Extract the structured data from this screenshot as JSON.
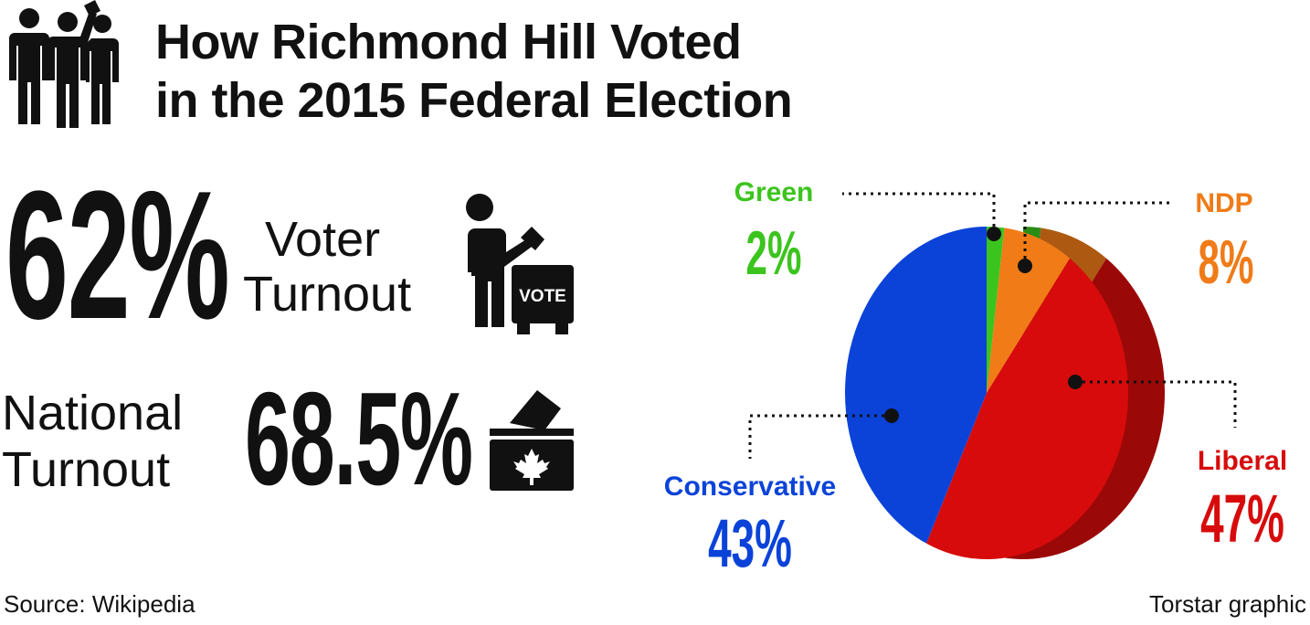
{
  "title": {
    "line1": "How Richmond Hill Voted",
    "line2": "in the 2015 Federal Election"
  },
  "local_turnout": {
    "value": "62%",
    "label_line1": "Voter",
    "label_line2": "Turnout"
  },
  "national_turnout": {
    "label_line1": "National",
    "label_line2": "Turnout",
    "value": "68.5%"
  },
  "ballot_box_label": "VOTE",
  "icons": [
    "crowd-icon",
    "voter-ballot-box-icon",
    "canada-ballot-box-icon"
  ],
  "chart_data": {
    "type": "pie",
    "title": "",
    "slices": [
      {
        "name": "Green",
        "label": "2%",
        "value": 2,
        "color": "#3cc41e"
      },
      {
        "name": "NDP",
        "label": "8%",
        "value": 8,
        "color": "#f07b17"
      },
      {
        "name": "Liberal",
        "label": "47%",
        "value": 47,
        "color": "#d70b0b"
      },
      {
        "name": "Conservative",
        "label": "43%",
        "value": 43,
        "color": "#0b43d9"
      }
    ]
  },
  "footer": {
    "source": "Source: Wikipedia",
    "credit": "Torstar graphic"
  }
}
